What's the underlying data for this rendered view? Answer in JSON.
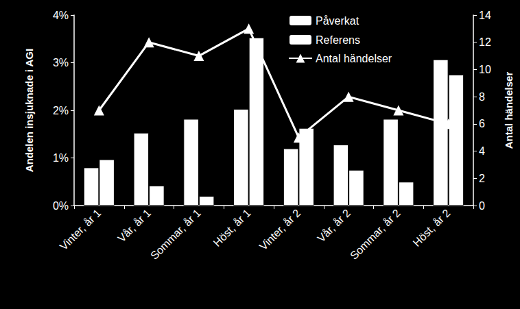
{
  "chart_data": {
    "type": "bar",
    "categories": [
      "Vinter, år 1",
      "Vår, år 1",
      "Sommar, år 1",
      "Höst, år 1",
      "Vinter, år 2",
      "Vår, år 2",
      "Sommar, år 2",
      "Höst, år 2"
    ],
    "series": [
      {
        "name": "Påverkat",
        "type": "bar",
        "color": "#ffffff",
        "values": [
          0.8,
          1.53,
          1.82,
          2.03,
          1.2,
          1.28,
          1.82,
          3.07
        ]
      },
      {
        "name": "Referens",
        "type": "bar",
        "color": "#ffffff",
        "values": [
          0.97,
          0.42,
          0.2,
          3.53,
          1.63,
          0.75,
          0.5,
          2.75
        ]
      },
      {
        "name": "Antal händelser",
        "type": "line",
        "axis": "y2",
        "color": "#ffffff",
        "marker": "triangle",
        "line_style": "solid",
        "values": [
          7,
          12,
          11,
          13,
          5,
          8,
          7,
          6
        ]
      }
    ],
    "y_label": "Andelen insjuknade i AGI",
    "y2_label": "Antal händelser",
    "ylim": [
      0,
      4
    ],
    "yticks": [
      {
        "value": 0,
        "label": "0%"
      },
      {
        "value": 1,
        "label": "1%"
      },
      {
        "value": 2,
        "label": "2%"
      },
      {
        "value": 3,
        "label": "3%"
      },
      {
        "value": 4,
        "label": "4%"
      }
    ],
    "y2lim": [
      0,
      14
    ],
    "y2ticks": [
      0,
      2,
      4,
      6,
      8,
      10,
      12,
      14
    ],
    "legend": "upper right",
    "grid": false
  }
}
